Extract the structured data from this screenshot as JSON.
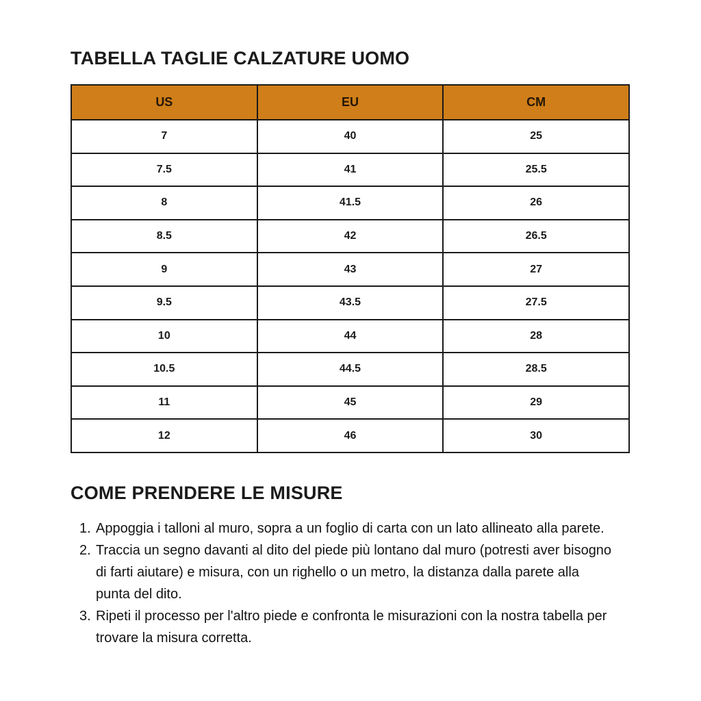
{
  "colors": {
    "table_header_bg": "#CF7E19",
    "table_border": "#1a1a1a",
    "text": "#1b1b1b",
    "page_bg": "#ffffff"
  },
  "size_table": {
    "title": "TABELLA TAGLIE CALZATURE UOMO",
    "columns": [
      "US",
      "EU",
      "CM"
    ],
    "rows": [
      [
        "7",
        "40",
        "25"
      ],
      [
        "7.5",
        "41",
        "25.5"
      ],
      [
        "8",
        "41.5",
        "26"
      ],
      [
        "8.5",
        "42",
        "26.5"
      ],
      [
        "9",
        "43",
        "27"
      ],
      [
        "9.5",
        "43.5",
        "27.5"
      ],
      [
        "10",
        "44",
        "28"
      ],
      [
        "10.5",
        "44.5",
        "28.5"
      ],
      [
        "11",
        "45",
        "29"
      ],
      [
        "12",
        "46",
        "30"
      ]
    ]
  },
  "instructions": {
    "title": "COME PRENDERE LE MISURE",
    "items": [
      {
        "num": "1.",
        "text": "Appoggia i talloni al muro, sopra a un foglio di carta con un lato allineato alla parete."
      },
      {
        "num": "2.",
        "text": "Traccia un segno davanti al dito del piede più lontano dal muro (potresti aver bisogno di farti aiutare) e misura, con un righello o un metro, la distanza dalla parete alla punta del dito."
      },
      {
        "num": "3.",
        "text": "Ripeti il processo per l'altro piede e confronta le misurazioni con la nostra tabella per trovare la misura corretta."
      }
    ]
  }
}
